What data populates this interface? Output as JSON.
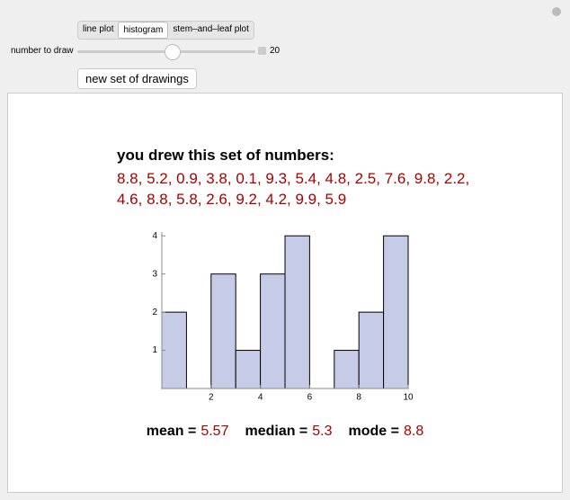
{
  "controls": {
    "tabs": [
      "line plot",
      "histogram",
      "stem–and–leaf plot"
    ],
    "selected_tab": 1,
    "slider_label": "number to draw",
    "slider_value": 20,
    "button": "new set of drawings"
  },
  "heading": "you drew this set of numbers:",
  "number_lines": [
    "8.8, 5.2, 0.9, 3.8, 0.1, 9.3, 5.4, 4.8, 2.5, 7.6, 9.8, 2.2,",
    "4.6, 8.8, 5.8, 2.6, 9.2, 4.2, 9.9, 5.9"
  ],
  "stats": [
    {
      "label": "mean =",
      "value": 5.57
    },
    {
      "label": "median =",
      "value": 5.3
    },
    {
      "label": "mode =",
      "value": 8.8
    }
  ],
  "chart_data": {
    "type": "histogram",
    "bins": [
      0,
      1,
      2,
      3,
      4,
      5,
      6,
      7,
      8,
      9,
      10
    ],
    "values": [
      2,
      0,
      3,
      1,
      3,
      4,
      0,
      1,
      2,
      4
    ],
    "color": "#c6cbe8",
    "xlim": [
      0,
      10
    ],
    "xticks": [
      2,
      4,
      6,
      8,
      10
    ],
    "ylim": [
      0,
      4.1
    ],
    "yticks": [
      1,
      2,
      3,
      4
    ]
  }
}
